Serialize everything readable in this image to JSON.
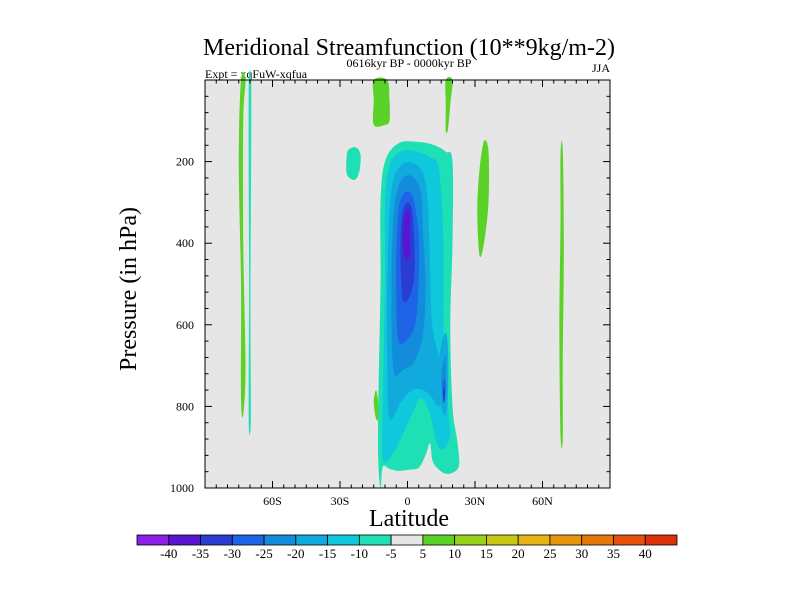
{
  "chart_data": {
    "type": "contour",
    "title": "Meridional Streamfunction (10**9kg/m-2)",
    "subtitle_left": "Expt = xqFuW-xqfua",
    "subtitle_center": "0616kyr BP - 0000kyr BP",
    "subtitle_right": "JJA",
    "xlabel": "Latitude",
    "ylabel": "Pressure (in hPa)",
    "xlim": [
      -90,
      90
    ],
    "ylim": [
      0,
      1000
    ],
    "y_inverted": true,
    "background_color": "#e6e6e6",
    "x_ticks": [
      {
        "value": -60,
        "label": "60S"
      },
      {
        "value": -30,
        "label": "30S"
      },
      {
        "value": 0,
        "label": "0"
      },
      {
        "value": 30,
        "label": "30N"
      },
      {
        "value": 60,
        "label": "60N"
      }
    ],
    "y_ticks": [
      {
        "value": 200,
        "label": "200"
      },
      {
        "value": 400,
        "label": "400"
      },
      {
        "value": 600,
        "label": "600"
      },
      {
        "value": 800,
        "label": "800"
      },
      {
        "value": 1000,
        "label": "1000"
      }
    ],
    "levels": [
      -40,
      -35,
      -30,
      -25,
      -20,
      -15,
      -10,
      -5,
      5,
      10,
      15,
      20,
      25,
      30,
      35,
      40
    ],
    "colors": [
      "#8c1ee6",
      "#5a14d2",
      "#2a3cd2",
      "#1e64e6",
      "#148cdc",
      "#10aadc",
      "#10c8dc",
      "#1ee0b4",
      "#e6e6e6",
      "#5ad228",
      "#96d21e",
      "#c8c814",
      "#e6b414",
      "#e6960a",
      "#e6780a",
      "#e6500a",
      "#dc320a"
    ],
    "regions": [
      {
        "name": "neg-main-core-5",
        "value": -7,
        "color": "#1ee0b4",
        "points": [
          [
            -12,
            1000
          ],
          [
            -13,
            930
          ],
          [
            -13,
            800
          ],
          [
            -12,
            500
          ],
          [
            -12,
            300
          ],
          [
            -10,
            200
          ],
          [
            -4,
            155
          ],
          [
            5,
            152
          ],
          [
            12,
            160
          ],
          [
            17,
            176
          ],
          [
            20,
            200
          ],
          [
            20,
            400
          ],
          [
            19,
            600
          ],
          [
            20,
            800
          ],
          [
            22,
            880
          ],
          [
            23,
            940
          ],
          [
            21,
            960
          ],
          [
            17,
            965
          ],
          [
            13,
            950
          ],
          [
            11,
            930
          ],
          [
            10,
            890
          ],
          [
            8,
            920
          ],
          [
            5,
            950
          ],
          [
            1,
            955
          ],
          [
            -4,
            958
          ],
          [
            -8,
            953
          ],
          [
            -11,
            948
          ]
        ]
      },
      {
        "name": "neg-main-core-10",
        "value": -12,
        "color": "#10c8dc",
        "points": [
          [
            -11,
            930
          ],
          [
            -11,
            800
          ],
          [
            -10,
            500
          ],
          [
            -10,
            300
          ],
          [
            -8,
            210
          ],
          [
            -3,
            175
          ],
          [
            4,
            175
          ],
          [
            10,
            190
          ],
          [
            14,
            220
          ],
          [
            16,
            400
          ],
          [
            16,
            600
          ],
          [
            18,
            800
          ],
          [
            19,
            870
          ],
          [
            16,
            905
          ],
          [
            13,
            890
          ],
          [
            10,
            820
          ],
          [
            6,
            780
          ],
          [
            2,
            820
          ],
          [
            -3,
            880
          ],
          [
            -7,
            920
          ]
        ]
      },
      {
        "name": "neg-main-core-15",
        "value": -17,
        "color": "#10aadc",
        "points": [
          [
            -8,
            830
          ],
          [
            -9,
            700
          ],
          [
            -9,
            500
          ],
          [
            -8,
            320
          ],
          [
            -6,
            240
          ],
          [
            -2,
            205
          ],
          [
            3,
            205
          ],
          [
            7,
            230
          ],
          [
            9,
            300
          ],
          [
            10,
            450
          ],
          [
            11,
            600
          ],
          [
            14,
            680
          ],
          [
            16,
            760
          ],
          [
            14,
            800
          ],
          [
            11,
            780
          ],
          [
            7,
            760
          ],
          [
            2,
            760
          ],
          [
            -3,
            790
          ]
        ]
      },
      {
        "name": "neg-main-core-20",
        "value": -22,
        "color": "#148cdc",
        "points": [
          [
            -6,
            720
          ],
          [
            -7,
            600
          ],
          [
            -7,
            450
          ],
          [
            -6,
            320
          ],
          [
            -4,
            260
          ],
          [
            -1,
            235
          ],
          [
            3,
            240
          ],
          [
            6,
            280
          ],
          [
            7,
            380
          ],
          [
            8,
            500
          ],
          [
            7,
            620
          ],
          [
            3,
            690
          ],
          [
            -2,
            710
          ]
        ]
      },
      {
        "name": "neg-main-core-25",
        "value": -27,
        "color": "#1e64e6",
        "points": [
          [
            -4,
            640
          ],
          [
            -5,
            530
          ],
          [
            -5,
            420
          ],
          [
            -4,
            320
          ],
          [
            -2,
            280
          ],
          [
            1,
            275
          ],
          [
            3,
            300
          ],
          [
            5,
            380
          ],
          [
            5,
            480
          ],
          [
            4,
            580
          ],
          [
            1,
            630
          ]
        ]
      },
      {
        "name": "neg-main-core-30",
        "value": -32,
        "color": "#2a3cd2",
        "points": [
          [
            -2,
            540
          ],
          [
            -3,
            460
          ],
          [
            -3,
            380
          ],
          [
            -2,
            320
          ],
          [
            0,
            300
          ],
          [
            2,
            320
          ],
          [
            3,
            400
          ],
          [
            3,
            480
          ],
          [
            1,
            530
          ]
        ]
      },
      {
        "name": "neg-main-core-35",
        "value": -37,
        "color": "#5a14d2",
        "points": [
          [
            -1,
            440
          ],
          [
            -2,
            390
          ],
          [
            -1,
            330
          ],
          [
            1,
            320
          ],
          [
            1,
            380
          ],
          [
            1,
            430
          ]
        ]
      },
      {
        "name": "neg-lower-15",
        "value": -17,
        "color": "#10aadc",
        "points": [
          [
            14,
            700
          ],
          [
            15,
            650
          ],
          [
            17,
            620
          ],
          [
            18,
            660
          ],
          [
            18,
            760
          ],
          [
            17,
            820
          ],
          [
            15,
            800
          ]
        ]
      },
      {
        "name": "neg-lower-20",
        "value": -22,
        "color": "#148cdc",
        "points": [
          [
            15,
            730
          ],
          [
            16,
            690
          ],
          [
            17,
            680
          ],
          [
            17,
            770
          ],
          [
            16,
            790
          ]
        ]
      },
      {
        "name": "neg-lower-25",
        "value": -27,
        "color": "#1e64e6",
        "points": [
          [
            15.5,
            750
          ],
          [
            16.5,
            730
          ],
          [
            17,
            760
          ],
          [
            16,
            785
          ]
        ]
      },
      {
        "name": "neg-lower-30",
        "value": -32,
        "color": "#2a3cd2",
        "points": [
          [
            15.8,
            765
          ],
          [
            16.5,
            755
          ],
          [
            16.6,
            780
          ],
          [
            16,
            790
          ]
        ]
      },
      {
        "name": "neg-left-blob",
        "value": -7,
        "color": "#1ee0b4",
        "points": [
          [
            -27,
            185
          ],
          [
            -26,
            170
          ],
          [
            -23,
            165
          ],
          [
            -21,
            180
          ],
          [
            -21,
            210
          ],
          [
            -22,
            235
          ],
          [
            -24,
            245
          ],
          [
            -27,
            230
          ]
        ]
      },
      {
        "name": "pos-top-strip",
        "value": 7,
        "color": "#5ad228",
        "points": [
          [
            -15,
            0
          ],
          [
            -9,
            0
          ],
          [
            -8,
            50
          ],
          [
            -8,
            100
          ],
          [
            -10,
            110
          ],
          [
            -15,
            110
          ],
          [
            -15,
            50
          ]
        ]
      },
      {
        "name": "pos-strip-20n-top",
        "value": 7,
        "color": "#5ad228",
        "points": [
          [
            17,
            0
          ],
          [
            20,
            0
          ],
          [
            19,
            60
          ],
          [
            18,
            120
          ],
          [
            17,
            125
          ],
          [
            17,
            60
          ]
        ]
      },
      {
        "name": "pos-mid-strip",
        "value": 7,
        "color": "#5ad228",
        "points": [
          [
            32,
            220
          ],
          [
            34,
            150
          ],
          [
            36,
            175
          ],
          [
            36,
            300
          ],
          [
            34,
            400
          ],
          [
            32,
            430
          ],
          [
            31,
            320
          ]
        ]
      },
      {
        "name": "pos-left-strip",
        "value": 7,
        "color": "#5ad228",
        "points": [
          [
            -74,
            0
          ],
          [
            -72,
            0
          ],
          [
            -73,
            100
          ],
          [
            -73,
            400
          ],
          [
            -72,
            700
          ],
          [
            -73,
            820
          ],
          [
            -74,
            780
          ],
          [
            -74,
            500
          ],
          [
            -75,
            200
          ]
        ]
      },
      {
        "name": "neg-left-strip",
        "value": -7,
        "color": "#1ee0b4",
        "points": [
          [
            -70.5,
            0
          ],
          [
            -69.5,
            0
          ],
          [
            -69.5,
            200
          ],
          [
            -69.8,
            550
          ],
          [
            -69.6,
            800
          ],
          [
            -69.8,
            860
          ],
          [
            -70.6,
            830
          ],
          [
            -70.4,
            500
          ],
          [
            -70.6,
            200
          ]
        ]
      },
      {
        "name": "pos-right-strip",
        "value": 7,
        "color": "#5ad228",
        "points": [
          [
            68,
            180
          ],
          [
            69,
            170
          ],
          [
            69.5,
            400
          ],
          [
            69,
            700
          ],
          [
            69,
            880
          ],
          [
            68,
            870
          ],
          [
            67.5,
            600
          ],
          [
            68,
            350
          ]
        ]
      },
      {
        "name": "pos-lower-small",
        "value": 7,
        "color": "#5ad228",
        "points": [
          [
            -14,
            830
          ],
          [
            -15,
            790
          ],
          [
            -14,
            760
          ],
          [
            -13,
            790
          ],
          [
            -13,
            830
          ]
        ]
      }
    ]
  }
}
